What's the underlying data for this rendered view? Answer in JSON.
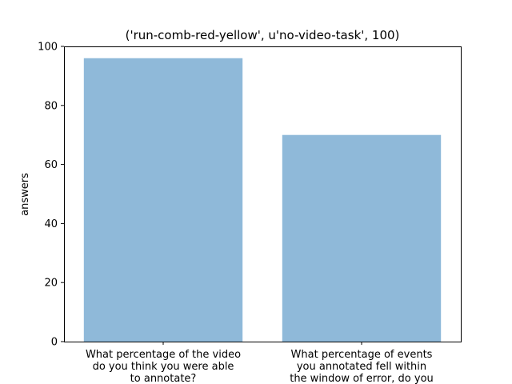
{
  "chart_data": {
    "type": "bar",
    "title": "('run-comb-red-yellow', u'no-video-task', 100)",
    "xlabel": "",
    "ylabel": "answers",
    "ylim": [
      0,
      100
    ],
    "yticks": [
      0,
      20,
      40,
      60,
      80,
      100
    ],
    "categories": [
      [
        "What percentage of the video",
        "do you think you were able",
        "to annotate?"
      ],
      [
        "What percentage of events",
        "you annotated fell within",
        "the window of error, do you"
      ]
    ],
    "values": [
      96,
      70
    ],
    "bar_color": "#8fb9d9",
    "grid": false,
    "legend": "none"
  }
}
